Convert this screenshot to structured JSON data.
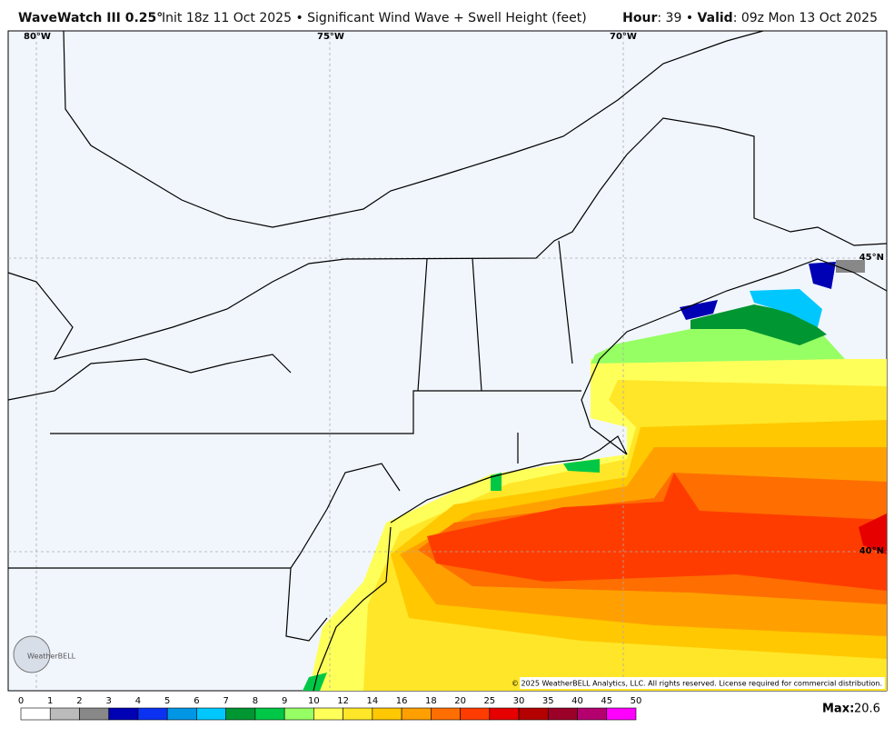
{
  "header": {
    "title": "WaveWatch III 0.25°",
    "subtitle": "Init 18z 11 Oct 2025 • Significant Wind Wave + Swell Height (feet)",
    "hour_label": "Hour",
    "hour_value": ": 39 •",
    "valid_label": "Valid",
    "valid_value": ": 09z Mon 13 Oct 2025"
  },
  "map": {
    "lon_labels": [
      "80°W",
      "75°W",
      "70°W"
    ],
    "lat_labels": [
      "45°N",
      "40°N"
    ],
    "copyright": "© 2025 WeatherBELL Analytics, LLC. All rights reserved. License required for commercial distribution.",
    "logo": "WeatherBELL"
  },
  "colorbar": {
    "ticks": [
      0,
      1,
      2,
      3,
      4,
      5,
      6,
      7,
      8,
      9,
      10,
      12,
      14,
      16,
      18,
      20,
      25,
      30,
      35,
      40,
      45,
      50
    ],
    "colors": [
      "#ffffff",
      "#bbbbbb",
      "#888888",
      "#0000b4",
      "#0a32f0",
      "#0096e6",
      "#00c8ff",
      "#009632",
      "#00c846",
      "#96ff64",
      "#ffff5a",
      "#ffe628",
      "#ffc800",
      "#ffa000",
      "#ff6e00",
      "#ff3c00",
      "#e60000",
      "#b40000",
      "#9b0028",
      "#b4006e",
      "#ff00ff"
    ],
    "max_label": "Max:",
    "max_value": 20.6
  }
}
